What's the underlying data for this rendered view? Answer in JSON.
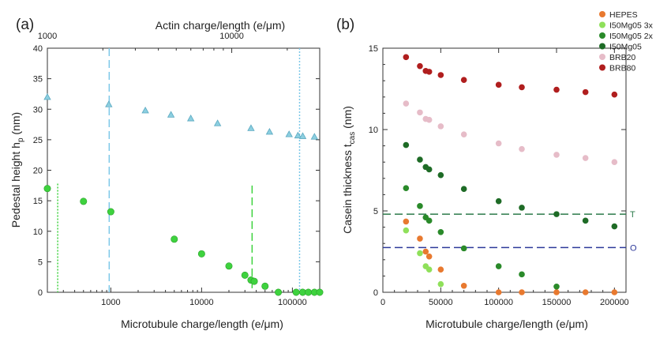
{
  "panels": {
    "a_label": "(a)",
    "b_label": "(b)"
  },
  "chart_data": [
    {
      "type": "scatter",
      "panel": "(a)",
      "xscale": "log",
      "xlabel": "Microtubule charge/length (e/μm)",
      "ylabel": "Pedestal height h",
      "ylabel_sub": "p",
      "ylabel_unit": " (nm)",
      "x2label": "Actin charge/length (e/μm)",
      "xlim": [
        200,
        200000
      ],
      "ylim": [
        0,
        40
      ],
      "xticks": [
        1000,
        10000,
        100000
      ],
      "xticklabels": [
        "1000",
        "10000",
        "100000"
      ],
      "yticks": [
        0,
        5,
        10,
        15,
        20,
        25,
        30,
        35,
        40
      ],
      "x2lim": [
        1000,
        30000
      ],
      "x2ticks": [
        1000,
        10000
      ],
      "x2ticklabels": [
        "1000",
        "10000"
      ],
      "grid": false,
      "series": [
        {
          "marker": "triangle",
          "color": "#8ccfe0",
          "x": [
            200,
            950,
            2400,
            4600,
            7600,
            15000,
            35000,
            56000,
            92000,
            115000,
            130000,
            175000
          ],
          "y": [
            32,
            30.8,
            29.8,
            29.1,
            28.5,
            27.7,
            26.9,
            26.3,
            25.9,
            25.7,
            25.6,
            25.5
          ]
        },
        {
          "marker": "circle",
          "color": "#3ed23e",
          "x": [
            200,
            500,
            1000,
            5000,
            10000,
            20000,
            30000,
            35000,
            38000,
            50000,
            70000,
            110000,
            130000,
            150000,
            175000,
            200000
          ],
          "y": [
            17,
            14.9,
            13.2,
            8.7,
            6.3,
            4.3,
            2.8,
            2.0,
            1.8,
            1.0,
            0.0,
            0.0,
            0.0,
            0.0,
            0.0,
            0.0
          ]
        }
      ],
      "reference_lines": [
        {
          "x": 960,
          "color": "#7cc8e8",
          "style": "dashed"
        },
        {
          "x": 120000,
          "color": "#7cc8e8",
          "style": "dotted"
        },
        {
          "x": 260,
          "y_top": 17.8,
          "color": "#3ed23e",
          "style": "dotted"
        },
        {
          "x": 36000,
          "y_top": 17.5,
          "color": "#3ed23e",
          "style": "dashed"
        }
      ]
    },
    {
      "type": "scatter",
      "panel": "(b)",
      "xlabel": "Microtubule charge/length (e/μm)",
      "ylabel": "Casein thickness t",
      "ylabel_sub": "cas",
      "ylabel_unit": " (nm)",
      "xlim": [
        0,
        210000
      ],
      "ylim": [
        0,
        15
      ],
      "xticks": [
        0,
        50000,
        100000,
        150000,
        200000
      ],
      "xticklabels": [
        "0",
        "50000",
        "100000",
        "150000",
        "200000"
      ],
      "yticks": [
        0,
        5,
        10,
        15
      ],
      "grid": false,
      "legend_position": "top-right",
      "series": [
        {
          "name": "HEPES",
          "color": "#e8792f",
          "x": [
            20000,
            32000,
            37000,
            40000,
            50000,
            70000,
            100000,
            120000,
            150000,
            175000,
            200000
          ],
          "y": [
            4.35,
            3.3,
            2.5,
            2.2,
            1.4,
            0.4,
            0.0,
            0.0,
            0.0,
            0.0,
            0.0
          ]
        },
        {
          "name": "I50Mg05 3x",
          "color": "#8fe05a",
          "x": [
            20000,
            32000,
            37000,
            40000,
            50000
          ],
          "y": [
            3.8,
            2.4,
            1.6,
            1.4,
            0.5
          ]
        },
        {
          "name": "I50Mg05 2x",
          "color": "#2a8a2a",
          "x": [
            20000,
            32000,
            37000,
            40000,
            50000,
            70000,
            100000,
            120000,
            150000
          ],
          "y": [
            6.4,
            5.3,
            4.6,
            4.4,
            3.7,
            2.7,
            1.6,
            1.1,
            0.35
          ]
        },
        {
          "name": "I50Mg05",
          "color": "#1e6b26",
          "x": [
            20000,
            32000,
            37000,
            40000,
            50000,
            70000,
            100000,
            120000,
            150000,
            175000,
            200000
          ],
          "y": [
            9.05,
            8.15,
            7.7,
            7.55,
            7.2,
            6.35,
            5.6,
            5.2,
            4.8,
            4.4,
            4.05
          ]
        },
        {
          "name": "BRB20",
          "color": "#e6bcc8",
          "x": [
            20000,
            32000,
            37000,
            40000,
            50000,
            70000,
            100000,
            120000,
            150000,
            175000,
            200000
          ],
          "y": [
            11.6,
            11.05,
            10.65,
            10.6,
            10.2,
            9.7,
            9.15,
            8.8,
            8.45,
            8.25,
            8.0
          ]
        },
        {
          "name": "BRB80",
          "color": "#b01e1e",
          "x": [
            20000,
            32000,
            37000,
            40000,
            50000,
            70000,
            100000,
            120000,
            150000,
            175000,
            200000
          ],
          "y": [
            14.45,
            13.9,
            13.6,
            13.55,
            13.35,
            13.05,
            12.75,
            12.6,
            12.45,
            12.3,
            12.15
          ]
        }
      ],
      "reference_lines": [
        {
          "y": 4.8,
          "color": "#2c7a4a",
          "style": "dashed",
          "label": "T"
        },
        {
          "y": 2.75,
          "color": "#2e3a9a",
          "style": "dashed",
          "label": "O"
        }
      ]
    }
  ]
}
